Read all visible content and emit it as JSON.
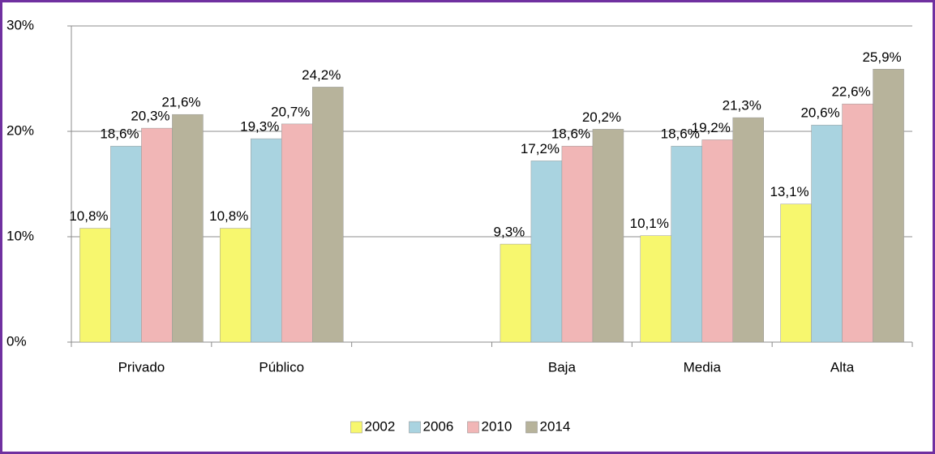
{
  "chart_data": {
    "type": "bar",
    "categories": [
      "Privado",
      "Público",
      null,
      "Baja",
      "Media",
      "Alta"
    ],
    "series": [
      {
        "name": "2002",
        "color": "#f7f76e",
        "values": [
          10.8,
          10.8,
          null,
          9.3,
          10.1,
          13.1
        ],
        "value_labels": [
          "10,8%",
          "10,8%",
          null,
          "9,3%",
          "10,1%",
          "13,1%"
        ]
      },
      {
        "name": "2006",
        "color": "#a9d3e0",
        "values": [
          18.6,
          19.3,
          null,
          17.2,
          18.6,
          20.6
        ],
        "value_labels": [
          "18,6%",
          "19,3%",
          null,
          "17,2%",
          "18,6%",
          "20,6%"
        ]
      },
      {
        "name": "2010",
        "color": "#f1b6b6",
        "values": [
          20.3,
          20.7,
          null,
          18.6,
          19.2,
          22.6
        ],
        "value_labels": [
          "20,3%",
          "20,7%",
          null,
          "18,6%",
          "19,2%",
          "22,6%"
        ]
      },
      {
        "name": "2014",
        "color": "#b7b39b",
        "values": [
          21.6,
          24.2,
          null,
          20.2,
          21.3,
          25.9
        ],
        "value_labels": [
          "21,6%",
          "24,2%",
          null,
          "20,2%",
          "21,3%",
          "25,9%"
        ]
      }
    ],
    "ylim": [
      0,
      30
    ],
    "yticks": [
      {
        "value": 0,
        "label": "0%"
      },
      {
        "value": 10,
        "label": "10%"
      },
      {
        "value": 20,
        "label": "20%"
      },
      {
        "value": 30,
        "label": "30%"
      }
    ],
    "grid": true,
    "legend": "bottom"
  }
}
